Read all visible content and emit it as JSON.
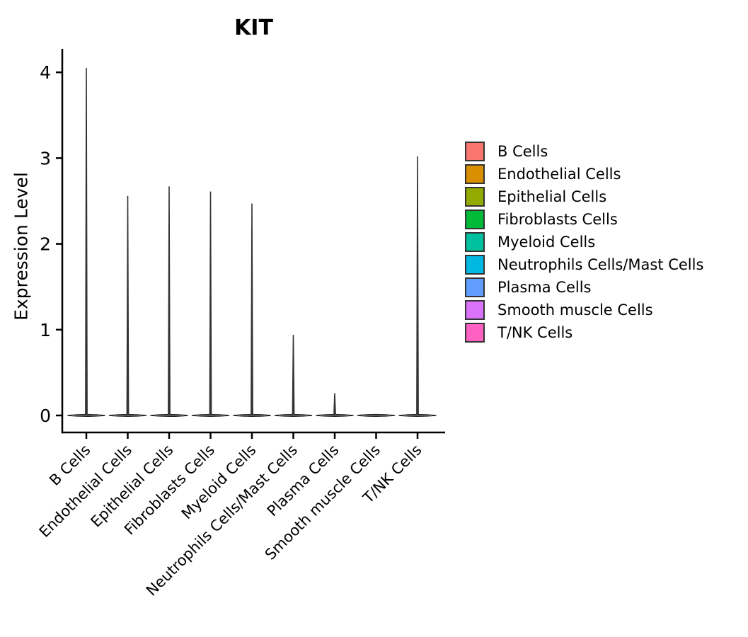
{
  "chart_data": {
    "type": "violin",
    "title": "KIT",
    "xlabel": "",
    "ylabel": "Expression Level",
    "categories": [
      "B Cells",
      "Endothelial Cells",
      "Epithelial Cells",
      "Fibroblasts Cells",
      "Myeloid Cells",
      "Neutrophils Cells/Mast Cells",
      "Plasma Cells",
      "Smooth muscle Cells",
      "T/NK Cells"
    ],
    "colors": [
      "#F8766D",
      "#D89000",
      "#93AA00",
      "#00BA38",
      "#00C19F",
      "#00B9E3",
      "#619CFF",
      "#DB72FB",
      "#FF61C3"
    ],
    "peak_values": [
      4.05,
      2.56,
      2.67,
      2.61,
      2.47,
      0.94,
      0.26,
      0.0,
      3.02
    ],
    "baseline_value": 0,
    "yticks": [
      0,
      1,
      2,
      3,
      4
    ],
    "ylim": [
      0,
      4.3
    ],
    "grid": false,
    "legend_position": "right",
    "violin_color": "#333333",
    "axis_color": "#000000"
  }
}
